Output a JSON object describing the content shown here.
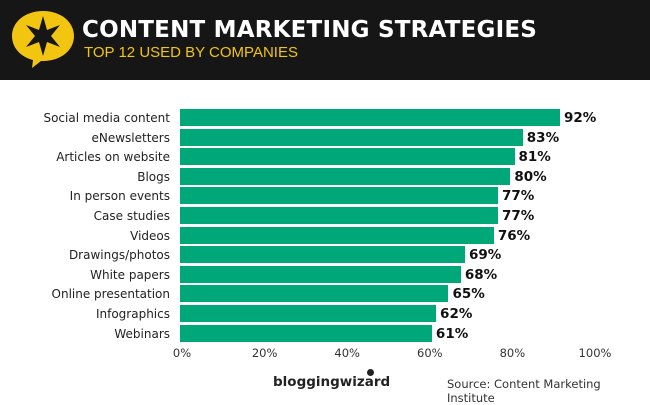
{
  "header": {
    "title": "CONTENT MARKETING STRATEGIES",
    "subtitle": "TOP 12 USED BY COMPANIES",
    "icon": "star-speech-bubble-icon",
    "accent_color": "#f2c511",
    "background_color": "#161616"
  },
  "footer": {
    "brand": "bloggingwizard",
    "source": "Source: Content Marketing Institute"
  },
  "chart_data": {
    "type": "bar",
    "orientation": "horizontal",
    "title": "CONTENT MARKETING STRATEGIES",
    "subtitle": "TOP 12 USED BY COMPANIES",
    "categories": [
      "Social media content",
      "eNewsletters",
      "Articles on website",
      "Blogs",
      "In person events",
      "Case studies",
      "Videos",
      "Drawings/photos",
      "White papers",
      "Online presentation",
      "Infographics",
      "Webinars"
    ],
    "values": [
      92,
      83,
      81,
      80,
      77,
      77,
      76,
      69,
      68,
      65,
      62,
      61
    ],
    "value_labels": [
      "92%",
      "83%",
      "81%",
      "80%",
      "77%",
      "77%",
      "76%",
      "69%",
      "68%",
      "65%",
      "62%",
      "61%"
    ],
    "xlabel": "",
    "ylabel": "",
    "xlim": [
      0,
      100
    ],
    "x_ticks": [
      "0%",
      "20%",
      "40%",
      "60%",
      "80%",
      "100%"
    ],
    "bar_color": "#00a779",
    "grid": false,
    "legend": null,
    "source": "Source: Content Marketing Institute"
  }
}
